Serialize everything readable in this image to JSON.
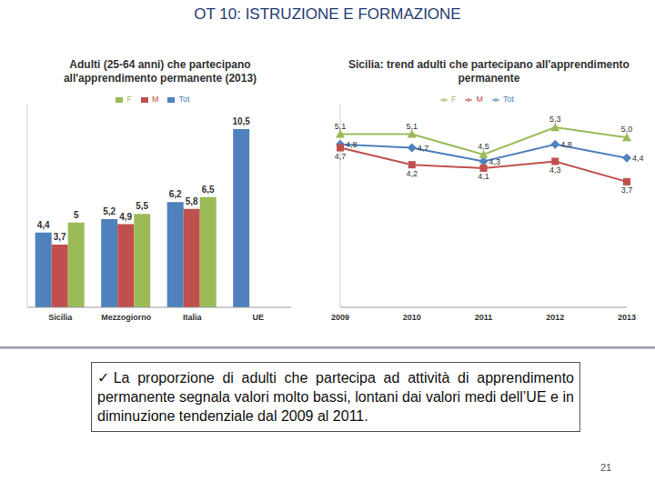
{
  "title": "OT 10: ISTRUZIONE E FORMAZIONE",
  "bullet": "✓",
  "text": "La proporzione di adulti che partecipa ad attività di apprendimento permanente segnala valori molto bassi, lontani dai valori medi dell’UE e in diminuzione tendenziale dal 2009 al 2011.",
  "page": "21",
  "chart_data": [
    {
      "type": "bar",
      "title": "Adulti (25-64 anni) che partecipano all'apprendimento permanente (2013)",
      "categories": [
        "Sicilia",
        "Mezzogiorno",
        "Italia",
        "UE"
      ],
      "series": [
        {
          "name": "Tot",
          "color": "#4f81bd",
          "values": [
            4.4,
            5.2,
            6.2,
            10.5
          ],
          "value_labels": [
            "4,4",
            "5,2",
            "6,2",
            "10,5"
          ]
        },
        {
          "name": "M",
          "color": "#c0504d",
          "values": [
            3.7,
            4.9,
            5.8,
            null
          ],
          "value_labels": [
            "3,7",
            "4,9",
            "5,8",
            null
          ]
        },
        {
          "name": "F",
          "color": "#9bbb59",
          "values": [
            5,
            5.5,
            6.5,
            null
          ],
          "value_labels": [
            "5",
            "5,5",
            "6,5",
            null
          ]
        }
      ],
      "ylim": [
        0,
        12
      ],
      "data_labels": true,
      "tick_labels": "x",
      "legend": "top"
    },
    {
      "type": "line",
      "title": "Sicilia: trend adulti che partecipano all'apprendimento permanente",
      "categories": [
        "2009",
        "2010",
        "2011",
        "2012",
        "2013"
      ],
      "series": [
        {
          "name": "Tot",
          "color": "#4f81bd",
          "marker": "diamond",
          "values": [
            4.8,
            4.7,
            4.3,
            4.8,
            4.4
          ],
          "value_labels": [
            "4,8",
            "4,7",
            "4,3",
            "4,8",
            "4,4"
          ]
        },
        {
          "name": "M",
          "color": "#c0504d",
          "marker": "square",
          "values": [
            4.7,
            4.2,
            4.1,
            4.3,
            3.7
          ],
          "value_labels": [
            "4,7",
            "4,2",
            "4,1",
            "4,3",
            "3,7"
          ]
        },
        {
          "name": "F",
          "color": "#9bbb59",
          "marker": "triangle",
          "values": [
            5.1,
            5.1,
            4.5,
            5.3,
            5.0
          ],
          "value_labels": [
            "5,1",
            "5,1",
            "4,5",
            "5,3",
            "5,0"
          ]
        }
      ],
      "ylim": [
        0,
        6
      ],
      "data_labels": true,
      "tick_labels": "x",
      "legend": "top"
    }
  ]
}
